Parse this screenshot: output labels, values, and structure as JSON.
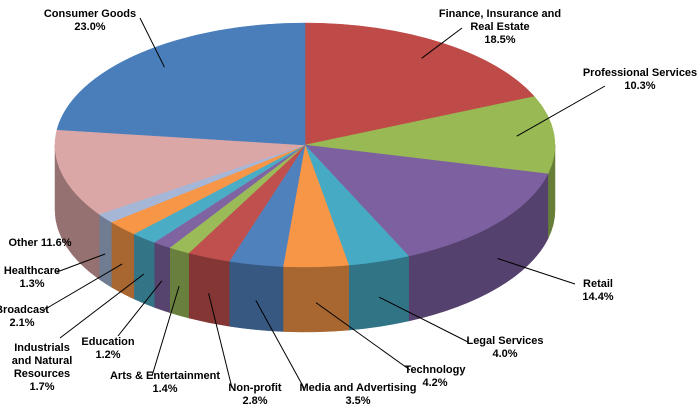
{
  "chart_data": {
    "type": "pie3d",
    "categories": [
      "Finance, Insurance and Real Estate",
      "Professional Services",
      "Retail",
      "Legal Services",
      "Technology",
      "Media and Advertising",
      "Non-profit",
      "Arts & Entertainment",
      "Education",
      "Industrials and Natural Resources",
      "Broadcast",
      "Healthcare",
      "Other",
      "Consumer Goods"
    ],
    "values": [
      18.5,
      10.3,
      14.4,
      4.0,
      4.2,
      3.5,
      2.8,
      1.4,
      1.2,
      1.7,
      2.1,
      1.3,
      11.6,
      23.0
    ],
    "value_labels": [
      "18.5%",
      "10.3%",
      "14.4%",
      "4.0%",
      "4.2%",
      "3.5%",
      "2.8%",
      "1.4%",
      "1.2%",
      "1.7%",
      "2.1%",
      "1.3%",
      "11.6%",
      "23.0%"
    ],
    "colors": [
      "#be4b48",
      "#98b954",
      "#7d60a0",
      "#46aac5",
      "#f79646",
      "#4f81bd",
      "#c0504d",
      "#9bbb59",
      "#8064a2",
      "#4bacc6",
      "#f79646",
      "#a5b6d7",
      "#dba6a6",
      "#4a7ebb"
    ]
  }
}
